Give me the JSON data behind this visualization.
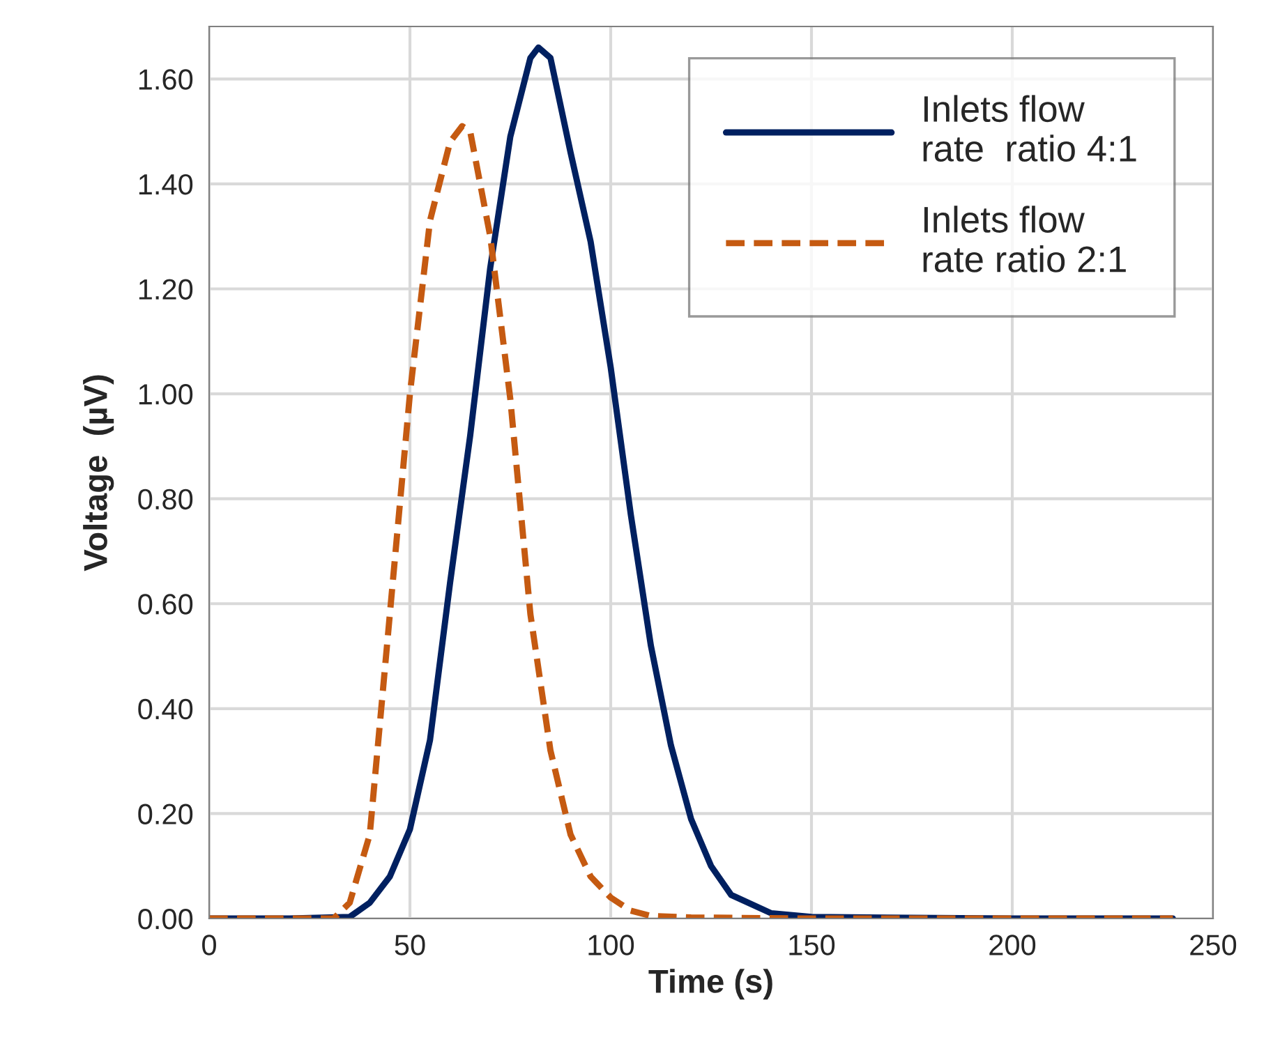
{
  "chart_data": {
    "type": "line",
    "xlabel": "Time (s)",
    "ylabel": "Voltage  (µV)",
    "xlim": [
      0,
      250
    ],
    "xticks": [
      0,
      50,
      100,
      150,
      200,
      250
    ],
    "ylim": [
      0,
      1.7
    ],
    "yticks": [
      {
        "value": 0,
        "label": "0.00"
      },
      {
        "value": 0.2,
        "label": "0.20"
      },
      {
        "value": 0.4,
        "label": "0.40"
      },
      {
        "value": 0.6,
        "label": "0.60"
      },
      {
        "value": 0.8,
        "label": "0.80"
      },
      {
        "value": 1.0,
        "label": "1.00"
      },
      {
        "value": 1.2,
        "label": "1.20"
      },
      {
        "value": 1.4,
        "label": "1.40"
      },
      {
        "value": 1.6,
        "label": "1.60"
      }
    ],
    "grid": true,
    "legend": "top right",
    "marker": "none",
    "series": [
      {
        "name": "Inlets flow\nrate  ratio 4:1",
        "color": "#002060",
        "line_style": "solid",
        "x": [
          0,
          20,
          35,
          40,
          45,
          50,
          55,
          60,
          65,
          70,
          75,
          80,
          82,
          85,
          90,
          95,
          100,
          105,
          110,
          115,
          120,
          125,
          130,
          140,
          150,
          200,
          240
        ],
        "values": [
          0,
          0,
          0.003,
          0.03,
          0.08,
          0.17,
          0.34,
          0.64,
          0.92,
          1.24,
          1.49,
          1.64,
          1.66,
          1.64,
          1.46,
          1.29,
          1.05,
          0.77,
          0.52,
          0.33,
          0.19,
          0.1,
          0.045,
          0.01,
          0.003,
          0,
          0
        ]
      },
      {
        "name": "Inlets flow\nrate ratio 2:1",
        "color": "#c55a11",
        "line_style": "dashed",
        "x": [
          0,
          20,
          31,
          35,
          40,
          45,
          50,
          55,
          60,
          63,
          65,
          70,
          75,
          80,
          85,
          90,
          95,
          100,
          105,
          110,
          120,
          150,
          200,
          240
        ],
        "values": [
          0,
          0,
          0,
          0.03,
          0.16,
          0.58,
          1.0,
          1.33,
          1.48,
          1.51,
          1.5,
          1.3,
          0.99,
          0.58,
          0.32,
          0.16,
          0.08,
          0.04,
          0.015,
          0.005,
          0.002,
          0,
          0,
          0
        ]
      }
    ]
  }
}
